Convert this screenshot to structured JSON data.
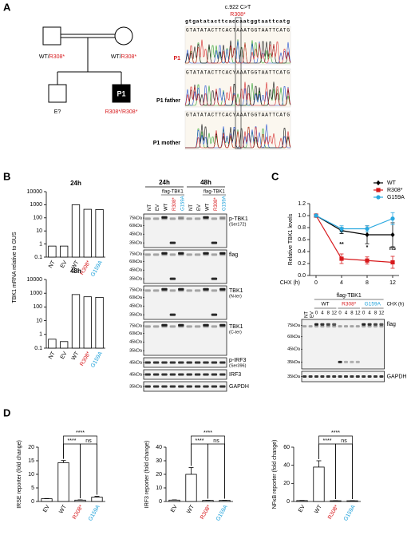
{
  "figure": {
    "panel_labels": [
      "A",
      "B",
      "C",
      "D"
    ],
    "pedigree": {
      "father": {
        "wt": "WT/",
        "mut": "R308*"
      },
      "mother": {
        "wt": "WT/",
        "mut": "R308*"
      },
      "sibling": "E?",
      "proband": "P1",
      "proband_genotype": "R308*/R308*"
    },
    "sequencing": {
      "variant": "c.922 C>T",
      "protein": "R308*",
      "reference": "gtgatatacttcaccaatggtaattcatg",
      "traces": [
        {
          "label": "P1",
          "sequence": "GTATATACTTCACTAAATGGTAATTCATG"
        },
        {
          "label": "P1 father",
          "sequence": "GTATATACTTCACYAAATGGTAATTCATG"
        },
        {
          "label": "P1 mother",
          "sequence": "GTATATACTTCACYAAATGGTAATTCATG"
        }
      ],
      "label_colors": [
        "#d7191c",
        "#000000",
        "#000000"
      ]
    },
    "blot_b": {
      "times": [
        "24h",
        "48h"
      ],
      "construct": "flag-TBK1",
      "lanes": [
        "NT",
        "EV",
        "WT",
        "R308*",
        "G159A"
      ],
      "lane_colors": [
        "#000000",
        "#000000",
        "#000000",
        "#d7191c",
        "#1a9fd9"
      ],
      "rows": [
        {
          "label": "p-TBK1",
          "sub": "(Ser172)",
          "markers": [
            "75kDa",
            "60kDa",
            "45kDa",
            "35kDa"
          ]
        },
        {
          "label": "flag",
          "markers": [
            "75kDa",
            "60kDa",
            "45kDa",
            "35kDa"
          ]
        },
        {
          "label": "TBK1",
          "sub": "(N-ter)",
          "markers": [
            "75kDa",
            "60kDa",
            "45kDa",
            "35kDa"
          ]
        },
        {
          "label": "TBK1",
          "sub": "(C-ter)",
          "markers": [
            "75kDa",
            "60kDa",
            "45kDa",
            "35kDa"
          ]
        },
        {
          "label": "p-IRF3",
          "sub": "(Ser396)",
          "markers": [
            "45kDa"
          ]
        },
        {
          "label": "IRF3",
          "markers": [
            "45kDa"
          ]
        },
        {
          "label": "GAPDH",
          "markers": [
            "35kDa"
          ]
        }
      ]
    },
    "blot_c": {
      "construct": "flag-TBK1",
      "controls": [
        "NT",
        "EV"
      ],
      "groups": [
        "WT",
        "R308*",
        "G159A"
      ],
      "group_colors": [
        "#000000",
        "#d7191c",
        "#1a9fd9"
      ],
      "timepoints": [
        "0",
        "4",
        "8",
        "12"
      ],
      "time_label": "CHX (h)",
      "rows": [
        {
          "label": "flag",
          "markers": [
            "75kDa",
            "60kDa",
            "45kDa",
            "35kDa"
          ]
        },
        {
          "label": "GAPDH",
          "markers": [
            "35kDa"
          ]
        }
      ]
    }
  },
  "chart_data": [
    {
      "type": "bar",
      "title": "24h",
      "y_label": "TBK1 mRNA relative to GUS",
      "log_scale": true,
      "categories": [
        "NT",
        "EV",
        "WT",
        "R308*",
        "G159A"
      ],
      "tick_label_colors": [
        "#000000",
        "#000000",
        "#000000",
        "#d7191c",
        "#1a9fd9"
      ],
      "values": [
        0.7,
        0.7,
        1000,
        450,
        430
      ],
      "ylim": [
        0.1,
        10000
      ],
      "yticks": [
        0.1,
        1,
        10,
        100,
        1000,
        10000
      ]
    },
    {
      "type": "bar",
      "title": "48h",
      "log_scale": true,
      "categories": [
        "NT",
        "EV",
        "WT",
        "R308*",
        "G159A"
      ],
      "tick_label_colors": [
        "#000000",
        "#000000",
        "#000000",
        "#d7191c",
        "#1a9fd9"
      ],
      "values": [
        0.45,
        0.3,
        800,
        550,
        500
      ],
      "ylim": [
        0.1,
        10000
      ],
      "yticks": [
        0.1,
        1,
        10,
        100,
        1000,
        10000
      ]
    },
    {
      "type": "line",
      "x_label": "CHX (h)",
      "y_label": "Relative TBK1 levels",
      "x": [
        0,
        4,
        8,
        12
      ],
      "xlim": [
        -1,
        13
      ],
      "xticks": [
        0,
        4,
        8,
        12
      ],
      "ylim": [
        0,
        1.2
      ],
      "yticks": [
        {
          "value": 0,
          "label": "0.0"
        },
        {
          "value": 0.2,
          "label": "0.2"
        },
        {
          "value": 0.4,
          "label": "0.4"
        },
        {
          "value": 0.6,
          "label": "0.6"
        },
        {
          "value": 0.8,
          "label": "0.8"
        },
        {
          "value": 1,
          "label": "1.0"
        },
        {
          "value": 1.2,
          "label": "1.2"
        }
      ],
      "legend": "upper right",
      "series": [
        {
          "name": "WT",
          "color": "#000000",
          "marker": "diamond",
          "values": [
            1,
            0.75,
            0.68,
            0.68
          ],
          "errors": [
            0,
            0.05,
            0.15,
            0.2
          ]
        },
        {
          "name": "R308*",
          "color": "#d7191c",
          "marker": "square",
          "values": [
            1,
            0.28,
            0.25,
            0.22
          ],
          "errors": [
            0,
            0.08,
            0.06,
            0.1
          ]
        },
        {
          "name": "G159A",
          "color": "#29a8e0",
          "marker": "circle",
          "values": [
            1,
            0.78,
            0.78,
            0.95
          ],
          "errors": [
            0,
            0.05,
            0.05,
            0.1
          ]
        }
      ],
      "annotations": [
        {
          "text": "**",
          "x": 4
        },
        {
          "text": "*",
          "x": 8
        },
        {
          "text": "ns",
          "x": 12
        }
      ]
    },
    {
      "type": "bar",
      "y_label": "IRSE reporter (fold change)",
      "categories": [
        "EV",
        "WT",
        "R308*",
        "G159A"
      ],
      "tick_label_colors": [
        "#000000",
        "#000000",
        "#d7191c",
        "#1a9fd9"
      ],
      "values": [
        1,
        14.3,
        0.5,
        1.6
      ],
      "errors": [
        0.1,
        0.8,
        0.1,
        0.3
      ],
      "ylim": [
        0,
        20
      ],
      "yticks": [
        0,
        5,
        10,
        15,
        20
      ],
      "brackets": [
        {
          "between": [
            "WT",
            "R308*"
          ],
          "text": "****"
        },
        {
          "between": [
            "WT",
            "G159A"
          ],
          "text": "****"
        },
        {
          "between": [
            "R308*",
            "G159A"
          ],
          "text": "ns"
        }
      ]
    },
    {
      "type": "bar",
      "y_label": "IRF3 reporter (fold change)",
      "categories": [
        "EV",
        "WT",
        "R308*",
        "G159A"
      ],
      "tick_label_colors": [
        "#000000",
        "#000000",
        "#d7191c",
        "#1a9fd9"
      ],
      "values": [
        1,
        20,
        0.8,
        0.8
      ],
      "errors": [
        0.2,
        5,
        0.1,
        0.1
      ],
      "ylim": [
        0,
        40
      ],
      "yticks": [
        0,
        10,
        20,
        30,
        40
      ],
      "brackets": [
        {
          "between": [
            "WT",
            "R308*"
          ],
          "text": "****"
        },
        {
          "between": [
            "WT",
            "G159A"
          ],
          "text": "****"
        },
        {
          "between": [
            "R308*",
            "G159A"
          ],
          "text": "ns"
        }
      ]
    },
    {
      "type": "bar",
      "y_label": "NFκB reporter (fold change)",
      "categories": [
        "EV",
        "WT",
        "R308*",
        "G159A"
      ],
      "tick_label_colors": [
        "#000000",
        "#000000",
        "#d7191c",
        "#1a9fd9"
      ],
      "values": [
        1,
        38,
        0.8,
        0.8
      ],
      "errors": [
        0.2,
        7,
        0.1,
        0.1
      ],
      "ylim": [
        0,
        60
      ],
      "yticks": [
        0,
        20,
        40,
        60
      ],
      "brackets": [
        {
          "between": [
            "WT",
            "R308*"
          ],
          "text": "****"
        },
        {
          "between": [
            "WT",
            "G159A"
          ],
          "text": "****"
        },
        {
          "between": [
            "R308*",
            "G159A"
          ],
          "text": "ns"
        }
      ]
    }
  ]
}
